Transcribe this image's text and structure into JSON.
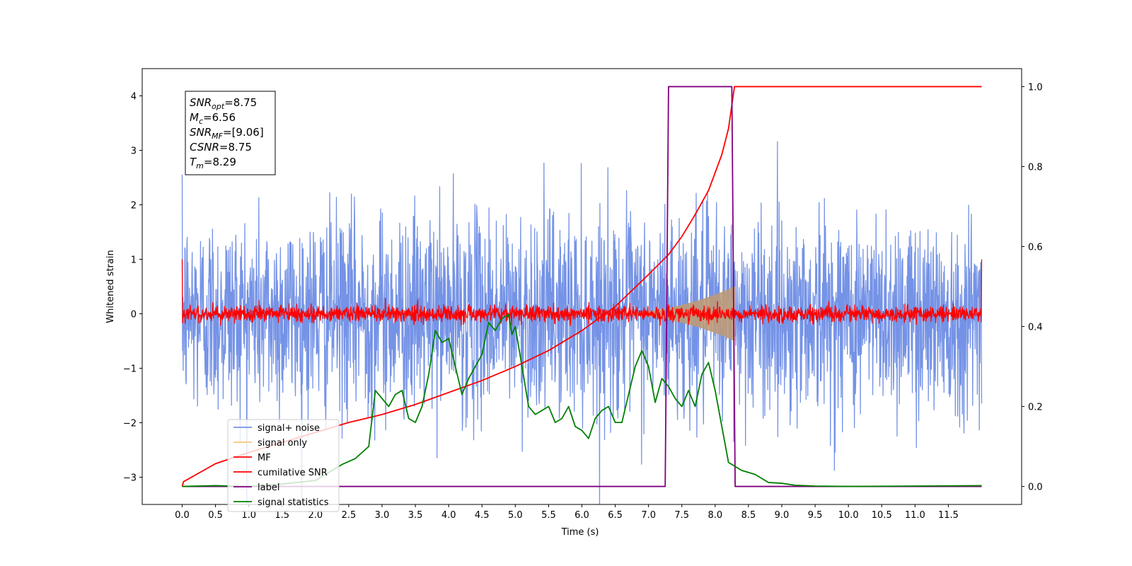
{
  "chart_data": {
    "type": "line",
    "xlabel": "Time (s)",
    "ylabel": "Whitened strain",
    "xlim": [
      -0.6,
      12.6
    ],
    "ylim": [
      -3.5,
      4.5
    ],
    "y2lim": [
      -0.045,
      1.045
    ],
    "x_ticks": [
      0.0,
      0.5,
      1.0,
      1.5,
      2.0,
      2.5,
      3.0,
      3.5,
      4.0,
      4.5,
      5.0,
      5.5,
      6.0,
      6.5,
      7.0,
      7.5,
      8.0,
      8.5,
      9.0,
      9.5,
      10.0,
      10.5,
      11.0,
      11.5
    ],
    "x_tick_labels": [
      "0.0",
      "0.5",
      "1.0",
      "1.5",
      "2.0",
      "2.5",
      "3.0",
      "3.5",
      "4.0",
      "4.5",
      "5.0",
      "5.5",
      "6.0",
      "6.5",
      "7.0",
      "7.5",
      "8.0",
      "8.5",
      "9.0",
      "9.5",
      "10.0",
      "10.5",
      "11.0",
      "11.5"
    ],
    "y_ticks": [
      -3,
      -2,
      -1,
      0,
      1,
      2,
      3,
      4
    ],
    "y_tick_labels": [
      "−3",
      "−2",
      "−1",
      "0",
      "1",
      "2",
      "3",
      "4"
    ],
    "y2_ticks": [
      0.0,
      0.2,
      0.4,
      0.6,
      0.8,
      1.0
    ],
    "y2_tick_labels": [
      "0.0",
      "0.2",
      "0.4",
      "0.6",
      "0.8",
      "1.0"
    ],
    "grid": false,
    "legend_position": "bottom-left",
    "duration": 12.0,
    "info_box": [
      {
        "base": "SNR",
        "sub": "opt",
        "rest": "=8.75"
      },
      {
        "base": "M",
        "sub": "c",
        "rest": "=6.56"
      },
      {
        "base": "SNR",
        "sub": "MF",
        "rest": "=[9.06]"
      },
      {
        "base": "CSNR",
        "sub": "",
        "rest": "=8.75"
      },
      {
        "base": "T",
        "sub": "m",
        "rest": "=8.29"
      }
    ],
    "series": [
      {
        "name": "signal+ noise",
        "color": "#7593e6",
        "axis": "left",
        "kind": "noise",
        "amplitude": 1.0
      },
      {
        "name": "signal only",
        "color": "#f5c878",
        "axis": "left",
        "kind": "chirp",
        "start": 6.3,
        "end": 8.29,
        "peak": 0.5,
        "fill": "#bd9a78"
      },
      {
        "name": "MF",
        "color": "#ff0000",
        "axis": "left",
        "kind": "noise",
        "amplitude": 0.1,
        "edges": [
          1.0,
          1.0
        ]
      },
      {
        "name": "cumilative SNR",
        "color": "#ff0000",
        "axis": "right",
        "x": [
          0.0,
          0.02,
          0.5,
          1.0,
          1.5,
          2.0,
          2.5,
          3.0,
          3.5,
          4.0,
          4.5,
          5.0,
          5.5,
          6.0,
          6.5,
          7.0,
          7.3,
          7.5,
          7.7,
          7.9,
          8.0,
          8.1,
          8.2,
          8.29,
          9.0,
          12.0
        ],
        "values": [
          0.0,
          0.012,
          0.057,
          0.085,
          0.11,
          0.135,
          0.16,
          0.18,
          0.205,
          0.235,
          0.265,
          0.3,
          0.34,
          0.39,
          0.45,
          0.53,
          0.58,
          0.625,
          0.68,
          0.74,
          0.785,
          0.83,
          0.895,
          1.0,
          1.0,
          1.0
        ]
      },
      {
        "name": "label",
        "color": "#800080",
        "axis": "right",
        "x": [
          0.0,
          7.25,
          7.3,
          8.25,
          8.3,
          12.0
        ],
        "values": [
          0.0,
          0.0,
          1.0,
          1.0,
          0.0,
          0.0
        ]
      },
      {
        "name": "signal statistics",
        "color": "#008000",
        "axis": "right",
        "x": [
          0.0,
          0.5,
          1.0,
          1.5,
          2.0,
          2.2,
          2.4,
          2.6,
          2.8,
          2.9,
          3.0,
          3.1,
          3.2,
          3.3,
          3.4,
          3.5,
          3.6,
          3.7,
          3.8,
          3.9,
          4.0,
          4.1,
          4.2,
          4.3,
          4.4,
          4.5,
          4.6,
          4.7,
          4.8,
          4.9,
          4.95,
          5.0,
          5.1,
          5.2,
          5.3,
          5.4,
          5.5,
          5.6,
          5.7,
          5.8,
          5.9,
          6.0,
          6.1,
          6.2,
          6.3,
          6.4,
          6.5,
          6.6,
          6.7,
          6.8,
          6.9,
          7.0,
          7.1,
          7.2,
          7.3,
          7.4,
          7.5,
          7.6,
          7.7,
          7.8,
          7.9,
          8.0,
          8.1,
          8.2,
          8.3,
          8.4,
          8.5,
          8.6,
          8.7,
          8.8,
          9.0,
          9.2,
          9.5,
          10.0,
          11.0,
          12.0
        ],
        "values": [
          0.0,
          0.002,
          0.0,
          0.006,
          0.015,
          0.035,
          0.055,
          0.07,
          0.1,
          0.24,
          0.22,
          0.2,
          0.23,
          0.24,
          0.17,
          0.16,
          0.2,
          0.28,
          0.39,
          0.36,
          0.37,
          0.3,
          0.23,
          0.27,
          0.3,
          0.33,
          0.41,
          0.39,
          0.42,
          0.43,
          0.38,
          0.4,
          0.3,
          0.2,
          0.18,
          0.19,
          0.2,
          0.16,
          0.17,
          0.2,
          0.15,
          0.14,
          0.12,
          0.17,
          0.19,
          0.2,
          0.16,
          0.16,
          0.23,
          0.3,
          0.34,
          0.3,
          0.21,
          0.27,
          0.25,
          0.22,
          0.2,
          0.24,
          0.2,
          0.28,
          0.31,
          0.24,
          0.15,
          0.06,
          0.05,
          0.04,
          0.035,
          0.03,
          0.02,
          0.01,
          0.008,
          0.003,
          0.001,
          0.0,
          0.001,
          0.002
        ]
      }
    ]
  }
}
